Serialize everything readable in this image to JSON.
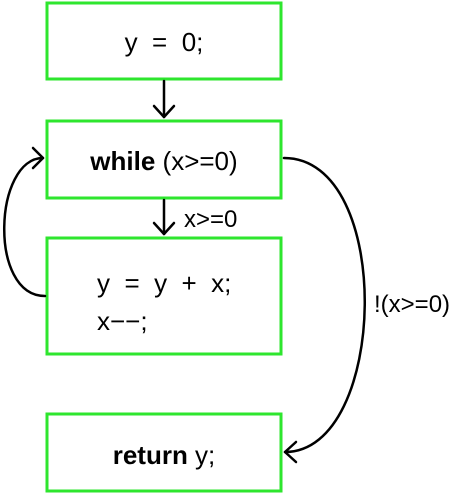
{
  "nodes": {
    "init": {
      "line": "y  =  0;"
    },
    "loop": {
      "keyword": "while",
      "condition": " (x>=0)"
    },
    "body": {
      "line1": "y  =  y  +  x;",
      "line2": "x−−;"
    },
    "ret": {
      "keyword": "return",
      "value": " y;"
    }
  },
  "edges": {
    "true_label": "x>=0",
    "false_label": "!(x>=0)"
  },
  "colors": {
    "node_border": "#2ee62e",
    "edge": "#000000"
  }
}
